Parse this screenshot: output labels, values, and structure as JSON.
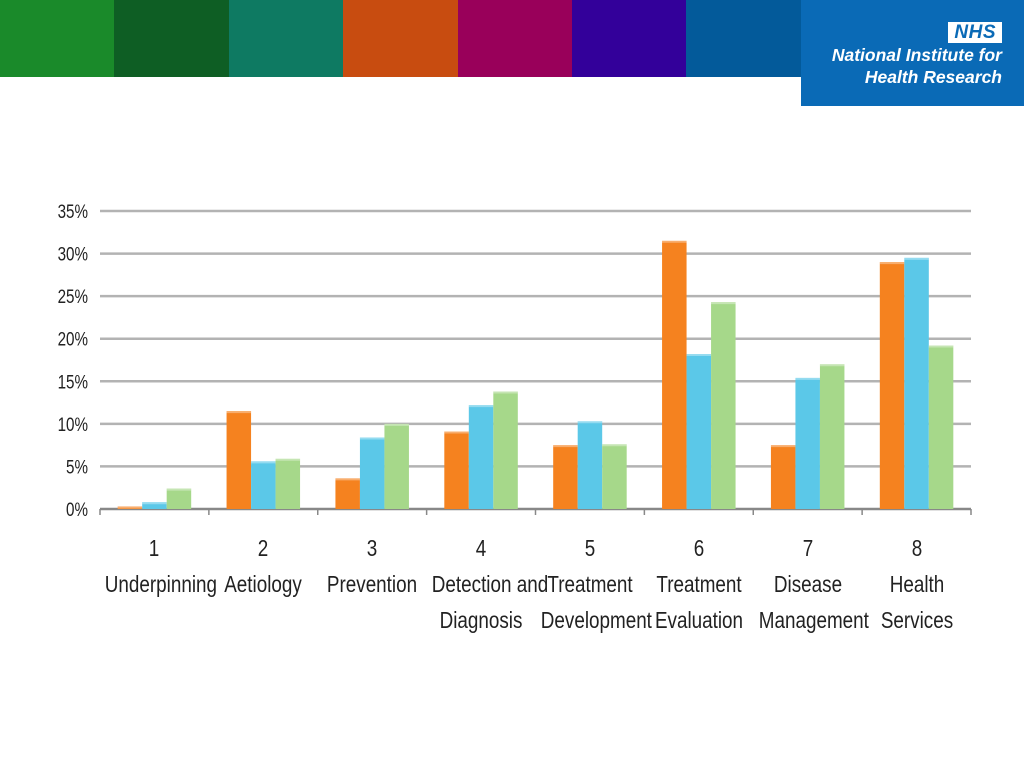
{
  "header": {
    "color_segments": [
      "#1a8a2a",
      "#0e5e24",
      "#0e7a62",
      "#c84c10",
      "#99005a",
      "#33009a",
      "#035a9a"
    ],
    "logo_text": "NHS",
    "org_lines": [
      "National Institute for",
      "Health Research"
    ],
    "brand_color": "#0a6ab6"
  },
  "chart_data": {
    "type": "bar",
    "categories": [
      [
        "1",
        "Underpinning"
      ],
      [
        "2",
        "Aetiology"
      ],
      [
        "3",
        "Prevention"
      ],
      [
        "4",
        "Detection and",
        "Diagnosis"
      ],
      [
        "5",
        "Treatment",
        "Development"
      ],
      [
        "6",
        "Treatment",
        "Evaluation"
      ],
      [
        "7",
        "Disease",
        "Management"
      ],
      [
        "8",
        "Health",
        "Services"
      ]
    ],
    "series": [
      {
        "color": "#f5821f",
        "values": [
          0.3,
          11.5,
          3.6,
          9.1,
          7.5,
          31.5,
          7.5,
          29.0
        ]
      },
      {
        "color": "#5bc8e8",
        "values": [
          0.8,
          5.6,
          8.4,
          12.2,
          10.3,
          18.2,
          15.4,
          29.5
        ]
      },
      {
        "color": "#a6d88a",
        "values": [
          2.4,
          5.9,
          10.0,
          13.8,
          7.6,
          24.3,
          17.0,
          19.2
        ]
      }
    ],
    "y_ticks": [
      "0%",
      "5%",
      "10%",
      "15%",
      "20%",
      "25%",
      "30%",
      "35%"
    ],
    "ylim": [
      0,
      35
    ],
    "grid": true
  }
}
